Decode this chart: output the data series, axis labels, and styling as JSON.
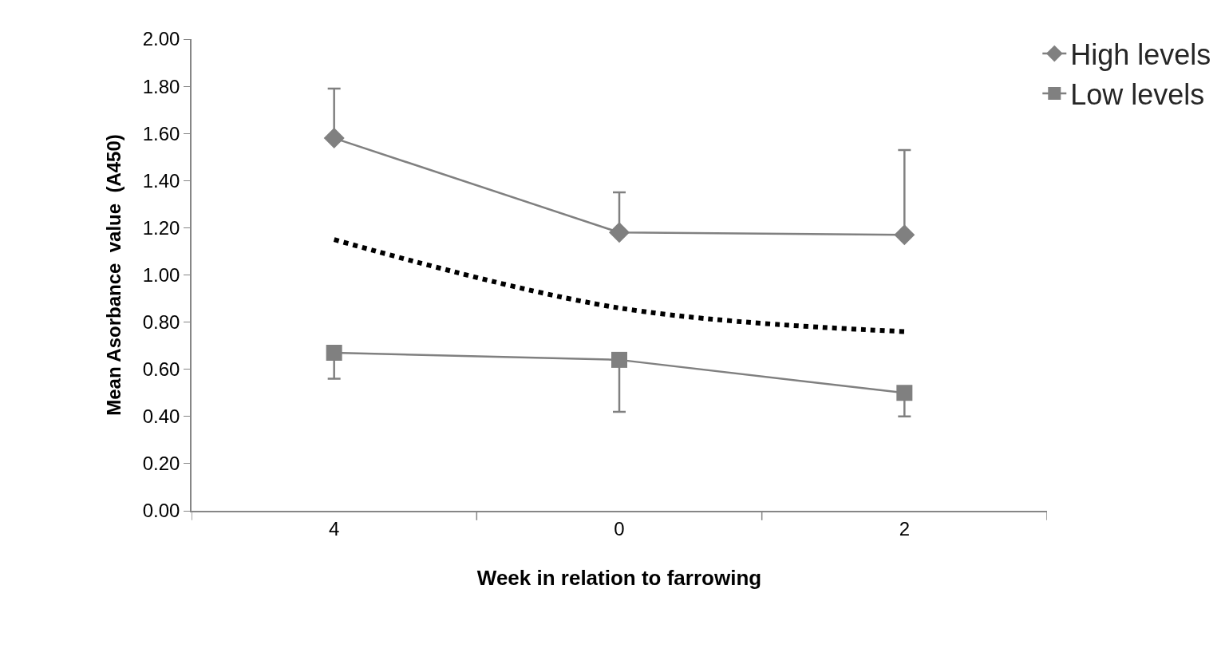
{
  "chart_data": {
    "type": "line",
    "xlabel": "Week in relation to farrowing",
    "ylabel": "Mean Asorbance  value  (A450)",
    "categories": [
      "4",
      "0",
      "2"
    ],
    "series": [
      {
        "name": "High levels",
        "color": "#808080",
        "marker": "diamond",
        "values": [
          1.58,
          1.18,
          1.17
        ],
        "errors": [
          [
            1.58,
            1.79
          ],
          [
            1.18,
            1.35
          ],
          [
            1.17,
            1.53
          ]
        ]
      },
      {
        "name": "Low levels",
        "color": "#808080",
        "marker": "square",
        "values": [
          0.67,
          0.64,
          0.5
        ],
        "errors": [
          [
            0.56,
            0.67
          ],
          [
            0.42,
            0.64
          ],
          [
            0.4,
            0.5
          ]
        ]
      },
      {
        "type": "line",
        "color": "#000000",
        "marker": "none",
        "line_style": "dotted",
        "values": [
          1.15,
          0.86,
          0.76
        ]
      }
    ],
    "ylim": [
      0,
      2
    ],
    "yticks": [
      {
        "value": 0,
        "label": "0.00"
      },
      {
        "value": 0.2,
        "label": "0.20"
      },
      {
        "value": 0.4,
        "label": "0.40"
      },
      {
        "value": 0.6,
        "label": "0.60"
      },
      {
        "value": 0.8,
        "label": "0.80"
      },
      {
        "value": 1,
        "label": "1.00"
      },
      {
        "value": 1.2,
        "label": "1.20"
      },
      {
        "value": 1.4,
        "label": "1.40"
      },
      {
        "value": 1.6,
        "label": "1.60"
      },
      {
        "value": 1.8,
        "label": "1.80"
      },
      {
        "value": 2,
        "label": "2.00"
      }
    ],
    "legend": "top right"
  }
}
